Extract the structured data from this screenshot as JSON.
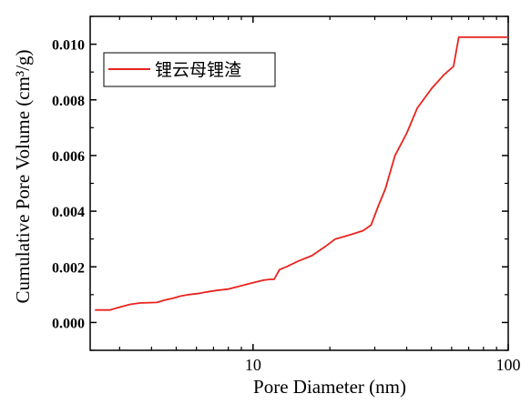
{
  "chart_data": {
    "type": "line",
    "title": "",
    "xlabel": "Pore Diameter (nm)",
    "ylabel": "Cumulative Pore Volume (cm³/g)",
    "x_scale": "log",
    "xlim": [
      2.3,
      100
    ],
    "ylim": [
      -0.001,
      0.011
    ],
    "x_ticks": [
      10,
      100
    ],
    "x_tick_labels": [
      "10",
      "100"
    ],
    "y_ticks": [
      0.0,
      0.002,
      0.004,
      0.006,
      0.008,
      0.01
    ],
    "y_tick_labels": [
      "0.000",
      "0.002",
      "0.004",
      "0.006",
      "0.008",
      "0.010"
    ],
    "grid": false,
    "legend_position": "top-left",
    "series": [
      {
        "name": "锂云母锂渣",
        "color": "#e8231e",
        "x": [
          2.4,
          2.75,
          3.0,
          3.3,
          3.6,
          4.2,
          4.5,
          4.9,
          5.2,
          5.6,
          6.2,
          6.6,
          7.2,
          8.0,
          8.8,
          9.7,
          11.0,
          11.7,
          12.1,
          12.7,
          13.5,
          15.0,
          17.0,
          19.0,
          21.0,
          23.0,
          25.0,
          27.0,
          29.0,
          31.0,
          33.0,
          36.0,
          40.0,
          44.0,
          50.0,
          56.0,
          61.0,
          64.0,
          70.0,
          85.0,
          100.0
        ],
        "y": [
          0.00045,
          0.00045,
          0.00055,
          0.00065,
          0.0007,
          0.00072,
          0.0008,
          0.00088,
          0.00095,
          0.001,
          0.00105,
          0.0011,
          0.00115,
          0.0012,
          0.0013,
          0.0014,
          0.00152,
          0.00155,
          0.00155,
          0.0019,
          0.002,
          0.0022,
          0.0024,
          0.0027,
          0.003,
          0.0031,
          0.0032,
          0.0033,
          0.0035,
          0.0042,
          0.0048,
          0.006,
          0.0068,
          0.0077,
          0.0084,
          0.0089,
          0.0092,
          0.01025,
          0.01025,
          0.01025,
          0.01025
        ]
      }
    ]
  }
}
